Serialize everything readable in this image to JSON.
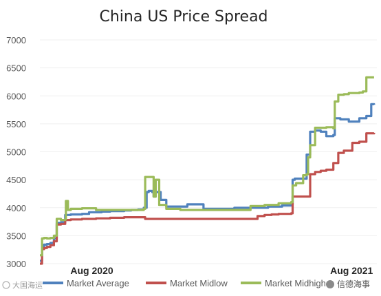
{
  "watermarks": {
    "left": "大国海运",
    "right": "信德海事"
  },
  "chart_data": {
    "type": "line",
    "title": "China US Price Spread",
    "xlabel": "",
    "ylabel": "",
    "ylim": [
      3000,
      7000
    ],
    "yticks": [
      3000,
      3500,
      4000,
      4500,
      5000,
      5500,
      6000,
      6500,
      7000
    ],
    "x_range": [
      0,
      480
    ],
    "x_tick_labels": [
      {
        "label": "Aug 2020",
        "x": 25
      },
      {
        "label": "Aug 2021",
        "x": 395
      }
    ],
    "grid": true,
    "legend_position": "bottom",
    "colors": {
      "Market Average": "#4f81bd",
      "Market Midlow": "#c0504d",
      "Market Midhigh": "#9bbb59"
    },
    "series": [
      {
        "name": "Market Average",
        "x": [
          0,
          3,
          6,
          10,
          15,
          20,
          24,
          30,
          36,
          44,
          60,
          70,
          88,
          100,
          120,
          130,
          140,
          145,
          148,
          152,
          155,
          160,
          162,
          165,
          172,
          180,
          195,
          210,
          220,
          233,
          240,
          260,
          277,
          300,
          325,
          345,
          358,
          360,
          363,
          374,
          378,
          380,
          385,
          392,
          400,
          408,
          412,
          418,
          420,
          428,
          440,
          455,
          465,
          472,
          476
        ],
        "y": [
          3050,
          3300,
          3340,
          3350,
          3370,
          3450,
          3730,
          3740,
          3870,
          3880,
          3890,
          3920,
          3930,
          3940,
          3950,
          3960,
          3970,
          3970,
          4000,
          4280,
          4300,
          4280,
          4200,
          4280,
          4140,
          4020,
          4020,
          4060,
          4060,
          3980,
          3980,
          3980,
          4000,
          4000,
          4020,
          4040,
          4050,
          4500,
          4520,
          4520,
          4520,
          4950,
          5360,
          5380,
          5360,
          5280,
          5280,
          5300,
          5600,
          5580,
          5540,
          5600,
          5640,
          5850,
          5840
        ]
      },
      {
        "name": "Market Midlow",
        "x": [
          0,
          3,
          6,
          10,
          15,
          20,
          24,
          30,
          36,
          44,
          60,
          80,
          100,
          120,
          140,
          150,
          160,
          180,
          200,
          220,
          260,
          300,
          310,
          320,
          330,
          340,
          350,
          358,
          360,
          375,
          380,
          385,
          392,
          400,
          408,
          418,
          425,
          433,
          445,
          455,
          465,
          476
        ],
        "y": [
          3000,
          3260,
          3280,
          3300,
          3330,
          3400,
          3700,
          3710,
          3780,
          3790,
          3800,
          3810,
          3820,
          3830,
          3830,
          3800,
          3800,
          3800,
          3800,
          3800,
          3800,
          3800,
          3850,
          3870,
          3880,
          3890,
          3890,
          3900,
          4200,
          4200,
          4200,
          4600,
          4640,
          4660,
          4680,
          4800,
          4980,
          5020,
          5160,
          5180,
          5330,
          5340
        ]
      },
      {
        "name": "Market Midhigh",
        "x": [
          0,
          3,
          6,
          10,
          15,
          20,
          24,
          30,
          36,
          37,
          40,
          44,
          60,
          80,
          100,
          120,
          140,
          148,
          150,
          155,
          160,
          162,
          165,
          170,
          180,
          200,
          220,
          233,
          260,
          280,
          300,
          320,
          340,
          358,
          360,
          365,
          375,
          380,
          382,
          385,
          392,
          400,
          408,
          418,
          420,
          425,
          433,
          440,
          455,
          460,
          465,
          476
        ],
        "y": [
          3150,
          3450,
          3460,
          3450,
          3460,
          3500,
          3800,
          3780,
          3790,
          4120,
          3960,
          3980,
          3990,
          3960,
          3960,
          3960,
          3960,
          3980,
          4550,
          4550,
          4550,
          4200,
          4500,
          4050,
          3980,
          3960,
          3960,
          3960,
          3960,
          3960,
          4030,
          4050,
          4080,
          4100,
          4400,
          4440,
          4580,
          4600,
          4900,
          5120,
          5430,
          5430,
          5440,
          5420,
          5900,
          6020,
          6030,
          6050,
          6060,
          6080,
          6330,
          6330
        ]
      }
    ]
  }
}
